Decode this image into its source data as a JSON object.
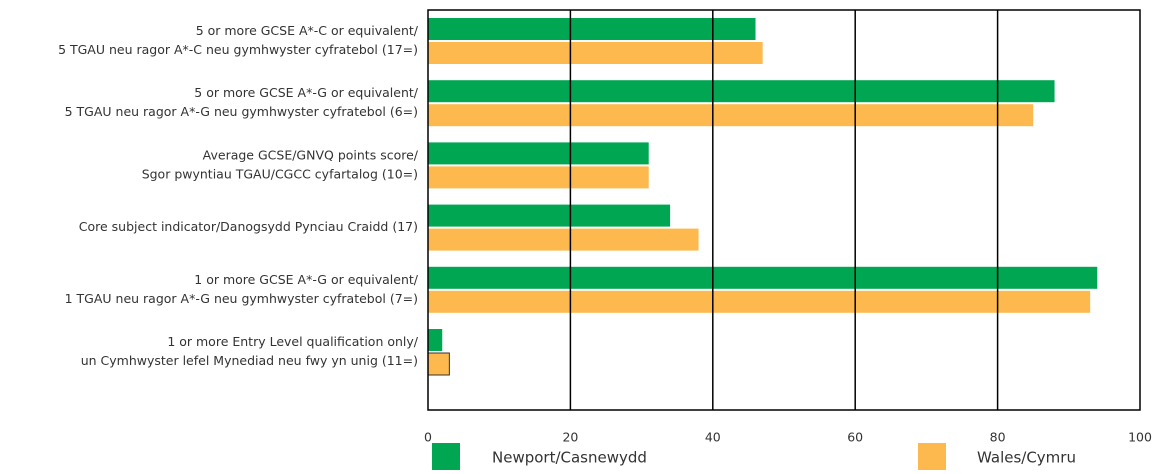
{
  "chart_data": {
    "type": "hbar",
    "categories": [
      [
        "5 or more GCSE A*-C or equivalent/",
        "5 TGAU neu ragor A*-C neu gymhwyster cyfratebol (17=)"
      ],
      [
        "5 or more GCSE A*-G or equivalent/",
        "5 TGAU neu ragor A*-G neu gymhwyster cyfratebol (6=)"
      ],
      [
        "Average GCSE/GNVQ points score/",
        "Sgor pwyntiau TGAU/CGCC cyfartalog (10=)"
      ],
      [
        "Core subject indicator/Danogsydd Pynciau Craidd (17)"
      ],
      [
        "1 or more GCSE A*-G or equivalent/",
        "1 TGAU neu ragor A*-G neu gymhwyster cyfratebol (7=)"
      ],
      [
        "1 or more Entry Level qualification only/",
        "un Cymhwyster lefel Mynediad neu fwy yn unig (11=)"
      ]
    ],
    "series": [
      {
        "name": "Newport/Casnewydd",
        "color": "#00a651",
        "values": [
          46,
          88,
          31,
          34,
          94,
          2
        ]
      },
      {
        "name": "Wales/Cymru",
        "color": "#fdb94e",
        "values": [
          47,
          85,
          31,
          38,
          93,
          3
        ]
      }
    ],
    "xlim": [
      0,
      100
    ],
    "xticks": [
      0,
      20,
      40,
      60,
      80,
      100
    ],
    "grid": true,
    "legend": "bottom"
  }
}
